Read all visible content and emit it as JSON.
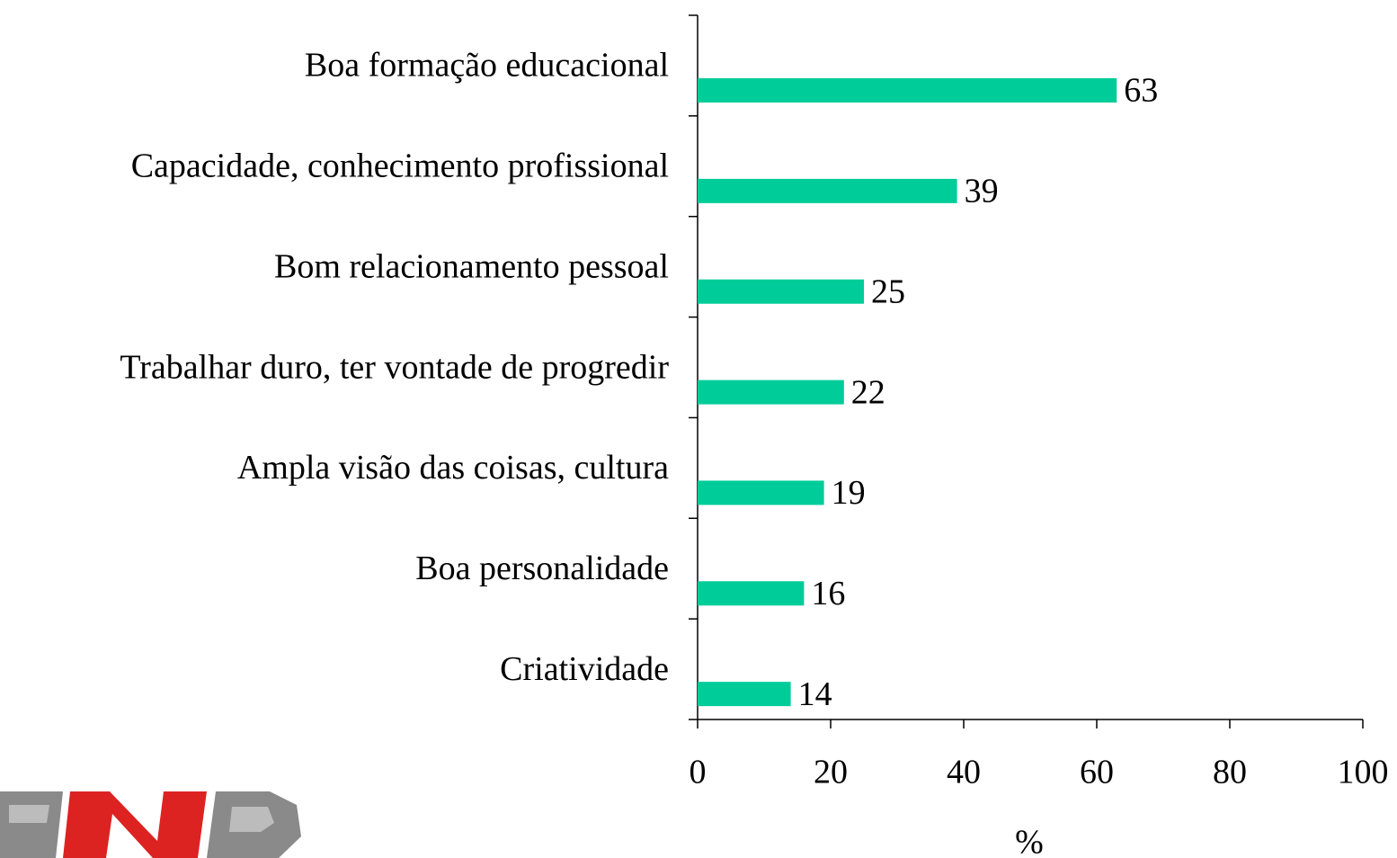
{
  "chart_data": {
    "type": "bar",
    "orientation": "horizontal",
    "categories": [
      "Boa formação educacional",
      "Capacidade, conhecimento profissional",
      "Bom relacionamento pessoal",
      "Trabalhar duro, ter vontade de progredir",
      "Ampla visão das coisas, cultura",
      "Boa personalidade",
      "Criatividade"
    ],
    "values": [
      63,
      39,
      25,
      22,
      19,
      16,
      14
    ],
    "color": "#00cc99",
    "xlim": [
      0,
      100
    ],
    "xticks": [
      0,
      20,
      40,
      60,
      80,
      100
    ],
    "xlabel": "%"
  }
}
